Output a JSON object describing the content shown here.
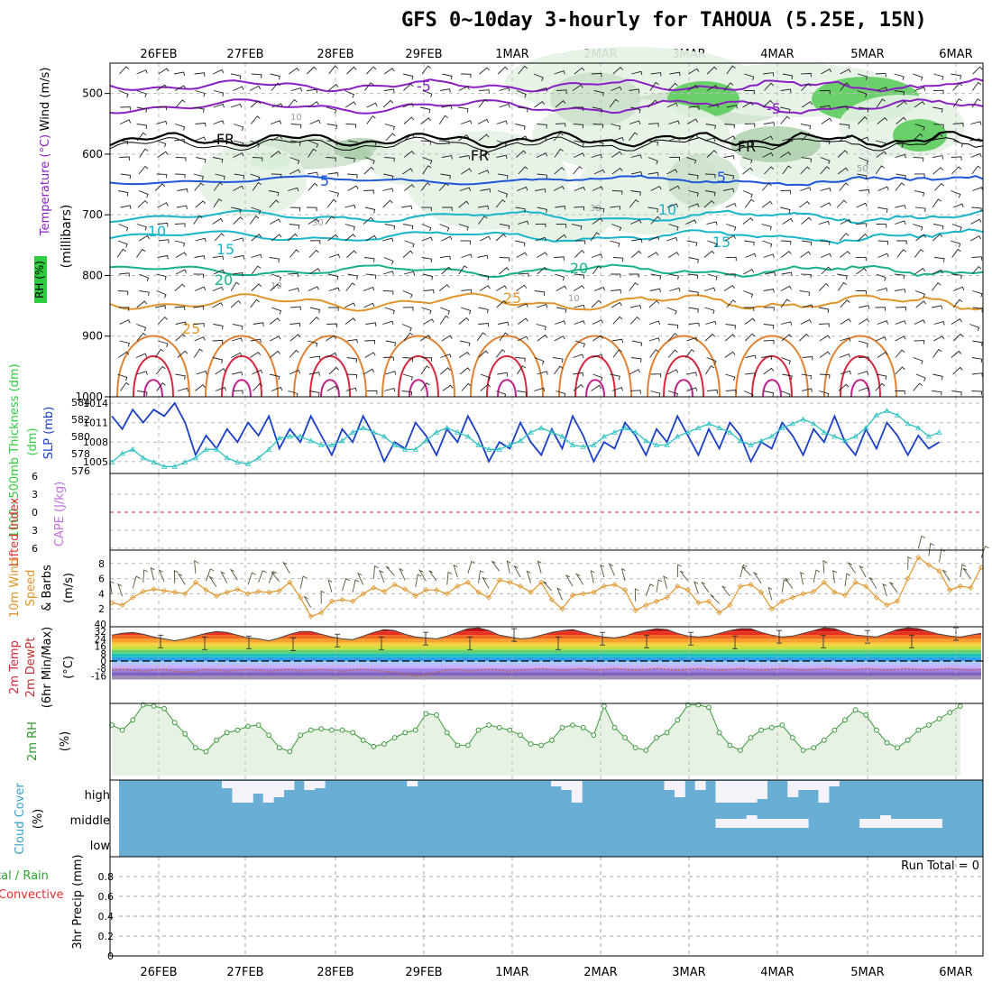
{
  "title": "GFS 0~10day 3-hourly for TAHOUA (5.25E, 15N)",
  "dates": [
    "26FEB",
    "27FEB",
    "28FEB",
    "29FEB",
    "1MAR",
    "2MAR",
    "3MAR",
    "4MAR",
    "5MAR",
    "6MAR"
  ],
  "colors": {
    "purple": "#8a1fc4",
    "blue": "#1e56d8",
    "cyan": "#18b6c8",
    "teal": "#16b08a",
    "orange": "#e0952a",
    "red": "#d8283c",
    "rhgreen": "#5ccc5c",
    "cloud": "#6aaed6",
    "slp": "#1c3fc8",
    "thick": "#2ec2c2",
    "precipgrid": "#aaaaaa"
  },
  "chart_data": [
    {
      "panel": "pressure-cross-section",
      "type": "contour",
      "ylabel": "(millibars)",
      "ylabel_parts": [
        "Wind (m/s)",
        "Temperature (°C)",
        "RH (%)"
      ],
      "yticks": [
        500,
        600,
        700,
        800,
        900,
        1000
      ],
      "ylim": [
        1000,
        450
      ],
      "temperature_contours": [
        {
          "value": "-5",
          "label_text": "-5",
          "color": "purple"
        },
        {
          "value": "FR",
          "label_text": "FR",
          "color": "black"
        },
        {
          "value": "5",
          "label_text": "5",
          "color": "blue"
        },
        {
          "value": "10",
          "label_text": "10",
          "color": "cyan"
        },
        {
          "value": "15",
          "label_text": "15",
          "color": "cyan"
        },
        {
          "value": "20",
          "label_text": "20",
          "color": "teal"
        },
        {
          "value": "25",
          "label_text": "25",
          "color": "orange"
        }
      ],
      "rh_labels": [
        "10",
        "30",
        "50"
      ]
    },
    {
      "panel": "slp-thickness",
      "type": "line",
      "ylabel_left": "1000~500mb Thickness (dm)",
      "ylabel_right": "SLP (mb)",
      "thickness_ticks": [
        576,
        578,
        580,
        582,
        584
      ],
      "slp_ticks": [
        1005,
        1008,
        1011,
        1014
      ],
      "slp_values": [
        1012,
        1010,
        1013,
        1011,
        1013,
        1012,
        1014,
        1011,
        1006,
        1009,
        1007,
        1010,
        1008,
        1011,
        1009,
        1012,
        1007,
        1010,
        1008,
        1012,
        1009,
        1006,
        1010,
        1008,
        1012,
        1009,
        1005,
        1008,
        1007,
        1011,
        1009,
        1006,
        1010,
        1008,
        1012,
        1009,
        1005,
        1008,
        1007,
        1011,
        1008,
        1006,
        1010,
        1007,
        1012,
        1009,
        1005,
        1008,
        1007,
        1011,
        1009,
        1006,
        1010,
        1008,
        1012,
        1009,
        1006,
        1010,
        1007,
        1011,
        1009,
        1005,
        1008,
        1007,
        1011,
        1009,
        1006,
        1010,
        1008,
        1012,
        1008,
        1006,
        1010,
        1007,
        1011,
        1009,
        1006,
        1009,
        1007,
        1008
      ],
      "thickness_values": [
        577,
        578,
        578.5,
        577.5,
        577,
        576.5,
        576.5,
        577,
        577.5,
        578.5,
        578.5,
        577.5,
        577,
        576.8,
        577.5,
        578.5,
        579.8,
        580,
        580,
        579.5,
        579,
        579,
        579.5,
        580.5,
        581,
        580.5,
        580,
        579,
        578.5,
        578.5,
        579.5,
        580.5,
        581,
        580.5,
        580,
        579,
        578.5,
        578.5,
        579,
        579.5,
        580.5,
        581,
        580.5,
        580,
        579,
        578.8,
        579,
        580,
        580.5,
        581,
        580.5,
        579.5,
        579,
        579,
        580,
        580.5,
        581,
        581.5,
        581,
        580.5,
        579.5,
        579,
        579.5,
        580,
        581,
        581.5,
        582,
        581.5,
        580.5,
        580,
        579.5,
        580,
        581,
        582.5,
        583,
        582.5,
        581.5,
        581,
        580,
        580.5
      ]
    },
    {
      "panel": "cape-lifted-index",
      "type": "line",
      "ylabel_left": "Lifted Index",
      "ylabel_right": "CAPE (J/kg)",
      "yticks": [
        -6,
        -3,
        0,
        3,
        6
      ],
      "ytick_labels": [
        "6",
        "3",
        "0",
        "3",
        "6"
      ]
    },
    {
      "panel": "10m-wind",
      "type": "line",
      "ylabel": "10m Wind Speed & Barbs (m/s)",
      "yticks": [
        2,
        4,
        6,
        8
      ],
      "ylim": [
        0,
        10
      ],
      "values": [
        2.8,
        2.5,
        3.5,
        4.3,
        4.6,
        4.4,
        4.2,
        4.0,
        5.5,
        4.5,
        3.7,
        4.2,
        4.6,
        4.0,
        4.3,
        4.2,
        4.4,
        5.5,
        3.5,
        1.0,
        1.5,
        3.0,
        3.2,
        3.0,
        4.0,
        4.8,
        4.3,
        5.2,
        4.6,
        3.7,
        4.5,
        4.5,
        4.0,
        5.0,
        5.5,
        4.2,
        3.5,
        5.8,
        5.5,
        5.0,
        4.2,
        5.5,
        3.2,
        2.0,
        3.8,
        4.0,
        4.2,
        5.0,
        5.2,
        4.5,
        1.8,
        2.5,
        3.0,
        3.5,
        5.0,
        4.5,
        2.8,
        3.0,
        1.5,
        2.5,
        5.0,
        5.2,
        4.2,
        2.0,
        3.0,
        3.5,
        4.0,
        4.3,
        5.5,
        4.2,
        3.8,
        5.5,
        5.0,
        3.5,
        2.5,
        3.0,
        6.0,
        8.8,
        7.8,
        7.0,
        4.5,
        5.0,
        4.8,
        7.5
      ]
    },
    {
      "panel": "2m-temp-dewpt",
      "type": "area",
      "ylabel": "2m Temp 2m DewPt (6hr Min/Max) (°C)",
      "yticks": [
        40,
        32,
        24,
        16,
        8,
        0,
        -8,
        -16
      ],
      "temp_values": [
        28,
        30,
        31,
        29,
        26,
        24,
        22,
        24,
        27,
        30,
        32,
        31,
        28,
        25,
        24,
        22,
        25,
        29,
        32,
        32,
        29,
        26,
        24,
        23,
        27,
        31,
        34,
        33,
        29,
        26,
        25,
        24,
        27,
        31,
        35,
        36,
        33,
        28,
        26,
        24,
        25,
        28,
        31,
        33,
        34,
        31,
        28,
        26,
        25,
        27,
        31,
        33,
        35,
        34,
        30,
        27,
        26,
        27,
        30,
        33,
        35,
        35,
        31,
        28,
        26,
        27,
        30,
        33,
        36,
        35,
        31,
        28,
        27,
        26,
        30,
        34,
        36,
        35,
        32,
        29,
        27,
        26,
        28,
        30
      ],
      "dewpt_values": [
        -10,
        -9,
        -10,
        -11,
        -10,
        -9,
        -11,
        -12,
        -11,
        -9,
        -10,
        -11,
        -10,
        -9,
        -10,
        -11,
        -10,
        -9,
        -11,
        -10,
        -9,
        -10,
        -11,
        -10,
        -9,
        -10,
        -11,
        -12,
        -14,
        -16,
        -15,
        -12,
        -10,
        -9,
        -11,
        -10,
        -9,
        -10,
        -11,
        -10,
        -9,
        -8,
        -9,
        -10,
        -9,
        -8,
        -10,
        -9,
        -8,
        -9,
        -10,
        -9,
        -8,
        -9,
        -10,
        -9,
        -8,
        -9,
        -10,
        -9,
        -8,
        -9,
        -10,
        -9,
        -8,
        -9,
        -10,
        -9,
        -8,
        -9,
        -10,
        -9,
        -8,
        -9,
        -10,
        -9,
        -8,
        -9,
        -10,
        -9,
        -8,
        -9,
        -10,
        -9
      ]
    },
    {
      "panel": "2m-rh",
      "type": "area",
      "ylabel": "2m RH (%)",
      "values": [
        40,
        36,
        44,
        56,
        55,
        53,
        42,
        33,
        22,
        19,
        28,
        34,
        36,
        39,
        40,
        32,
        22,
        19,
        32,
        36,
        37,
        36,
        36,
        34,
        28,
        23,
        25,
        30,
        34,
        36,
        49,
        48,
        34,
        24,
        24,
        36,
        40,
        38,
        36,
        32,
        25,
        24,
        28,
        38,
        40,
        38,
        32,
        55,
        38,
        30,
        22,
        20,
        30,
        34,
        44,
        56,
        56,
        54,
        34,
        24,
        20,
        30,
        36,
        38,
        40,
        30,
        20,
        22,
        28,
        36,
        44,
        52,
        48,
        36,
        26,
        22,
        28,
        36,
        40,
        45,
        50,
        55
      ],
      "ylim": [
        0,
        100
      ]
    },
    {
      "panel": "cloud-cover",
      "type": "bar",
      "ylabel": "Cloud Cover (%)",
      "level_labels": [
        "high",
        "middle",
        "low"
      ],
      "high_bars": [
        0,
        0,
        0,
        0,
        0,
        0,
        0,
        0,
        0,
        0,
        8,
        24,
        24,
        14,
        24,
        18,
        10,
        0,
        10,
        8,
        0,
        0,
        0,
        0,
        0,
        0,
        0,
        0,
        6,
        0,
        0,
        0,
        0,
        0,
        0,
        0,
        0,
        0,
        0,
        0,
        0,
        0,
        6,
        10,
        24,
        0,
        0,
        0,
        0,
        0,
        0,
        0,
        0,
        10,
        18,
        0,
        10,
        0,
        24,
        24,
        24,
        24,
        20,
        0,
        0,
        18,
        10,
        10,
        24,
        6,
        0,
        0,
        0,
        0,
        0,
        0,
        0,
        0,
        0,
        0,
        0,
        0,
        0,
        0
      ],
      "middle_bars": [
        0,
        0,
        0,
        0,
        0,
        0,
        0,
        0,
        0,
        0,
        0,
        0,
        0,
        0,
        0,
        0,
        0,
        0,
        0,
        0,
        0,
        0,
        0,
        0,
        0,
        0,
        0,
        0,
        0,
        0,
        0,
        0,
        0,
        0,
        0,
        0,
        0,
        0,
        0,
        0,
        0,
        0,
        0,
        0,
        0,
        0,
        0,
        0,
        0,
        0,
        0,
        0,
        0,
        0,
        0,
        0,
        0,
        0,
        0,
        0,
        0,
        0,
        0,
        0,
        0,
        0,
        0,
        0,
        0,
        0,
        0,
        0,
        0,
        0,
        0,
        0,
        0,
        0,
        0,
        0,
        0,
        0,
        0,
        0
      ]
    },
    {
      "panel": "3hr-precip",
      "type": "bar",
      "ylabel_left": "Total / Rain Convective",
      "ylabel": "3hr Precip (mm)",
      "yticks": [
        0,
        0.2,
        0.4,
        0.6,
        0.8
      ],
      "ylim": [
        0,
        1
      ],
      "run_total_label": "Run Total = 0",
      "values": []
    }
  ],
  "labels": {
    "wind": "Wind (m/s)",
    "temperature": "Temperature (°C)",
    "rh": "RH (%)",
    "millibars": "(millibars)",
    "thickness": "1000~500mb Thickness (dm)",
    "slp": "SLP (mb)",
    "lifted": "Lifted Index",
    "cape": "CAPE (J/kg)",
    "wind10": "10m Wind",
    "speed": "Speed & Barbs",
    "ms": "(m/s)",
    "temp2m": "2m Temp",
    "dewpt2m": "2m DewPt",
    "minmax": "(6hr Min/Max)",
    "degc": "(°C)",
    "rh2m": "2m RH",
    "pct": "(%)",
    "cloud": "Cloud Cover",
    "total": "tal / Rain",
    "convective": "Convective",
    "precip": "3hr Precip (mm)"
  }
}
